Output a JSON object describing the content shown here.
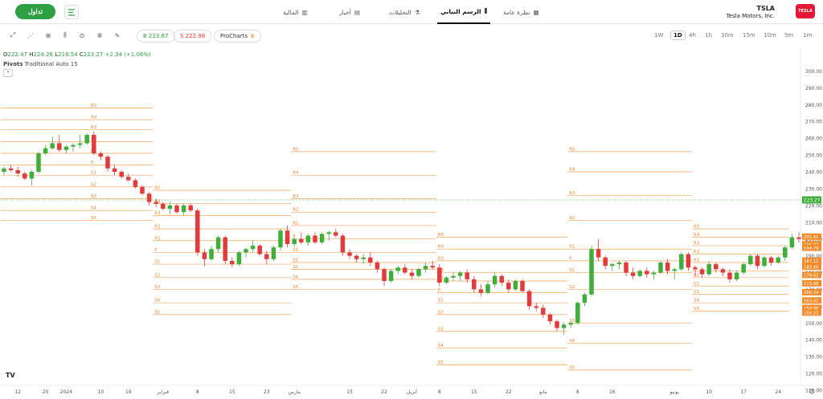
{
  "header": {
    "trade_label": "تداول",
    "nav": [
      {
        "label": "نظرة عامة",
        "icon": "grid-icon"
      },
      {
        "label": "الرسم البياني",
        "icon": "candles-icon"
      },
      {
        "label": "التحليلات",
        "icon": "flask-icon"
      },
      {
        "label": "أخبار",
        "icon": "newspaper-icon"
      },
      {
        "label": "المالية",
        "icon": "bar-chart-icon"
      }
    ],
    "symbol": "TSLA",
    "company": "Tesla Motors, Inc.",
    "logo_text": "TESLA"
  },
  "toolbar": {
    "buy": "B 223.67",
    "sell": "S 222.98",
    "pro": "ProCharts",
    "timeframes": [
      "1W",
      "1D",
      "4h",
      "1h",
      "30m",
      "15m",
      "10m",
      "5m",
      "1m"
    ],
    "active_timeframe": "1D"
  },
  "ohlc": {
    "o_label": "O",
    "o": "222.47",
    "h_label": "H",
    "h": "224.28",
    "l_label": "L",
    "l": "218.54",
    "c_label": "C",
    "c": "223.27",
    "change": "+2.34 (+1.06%)"
  },
  "indicator": {
    "name": "Pivots",
    "params": "Traditional Auto 15"
  },
  "chart_data": {
    "type": "candlestick",
    "ylim": [
      110,
      305
    ],
    "y_ticks": [
      300,
      290,
      280,
      270,
      260,
      250,
      240,
      230,
      220,
      210,
      200,
      190,
      180,
      170,
      160,
      150,
      140,
      130,
      120,
      110
    ],
    "y_tick_labels": [
      "300.00",
      "290.00",
      "280.00",
      "270.00",
      "260.00",
      "250.00",
      "240.00",
      "230.00",
      "220.00",
      "210.00",
      "200.00",
      "190.00",
      "180.00",
      "170.00",
      "160.00",
      "150.00",
      "140.00",
      "130.00",
      "120.00",
      "110.00"
    ],
    "x_labels": [
      {
        "label": "12",
        "i": 2
      },
      {
        "label": "20",
        "i": 6
      },
      {
        "label": "2024",
        "i": 9
      },
      {
        "label": "10",
        "i": 14
      },
      {
        "label": "19",
        "i": 18
      },
      {
        "label": "فبراير",
        "i": 23
      },
      {
        "label": "8",
        "i": 28
      },
      {
        "label": "15",
        "i": 33
      },
      {
        "label": "23",
        "i": 38
      },
      {
        "label": "مارس",
        "i": 42
      },
      {
        "label": "15",
        "i": 50
      },
      {
        "label": "22",
        "i": 55
      },
      {
        "label": "أبريل",
        "i": 59
      },
      {
        "label": "8",
        "i": 63
      },
      {
        "label": "15",
        "i": 68
      },
      {
        "label": "22",
        "i": 73
      },
      {
        "label": "مايو",
        "i": 78
      },
      {
        "label": "8",
        "i": 83
      },
      {
        "label": "16",
        "i": 88
      },
      {
        "label": "يونيو",
        "i": 97
      },
      {
        "label": "10",
        "i": 102
      },
      {
        "label": "17",
        "i": 107
      },
      {
        "label": "24",
        "i": 112
      }
    ],
    "candles": [
      [
        240,
        243,
        238,
        242
      ],
      [
        242,
        244,
        240,
        241
      ],
      [
        241,
        243,
        237,
        239
      ],
      [
        239,
        240,
        235,
        236
      ],
      [
        236,
        241,
        232,
        240
      ],
      [
        240,
        252,
        239,
        251
      ],
      [
        251,
        256,
        250,
        254
      ],
      [
        254,
        261,
        253,
        257
      ],
      [
        257,
        262,
        252,
        253
      ],
      [
        253,
        256,
        251,
        255
      ],
      [
        255,
        257,
        252,
        256
      ],
      [
        256,
        262,
        254,
        257
      ],
      [
        257,
        263,
        256,
        262
      ],
      [
        262,
        264,
        250,
        251
      ],
      [
        251,
        252,
        247,
        249
      ],
      [
        249,
        250,
        240,
        242
      ],
      [
        242,
        244,
        238,
        240
      ],
      [
        240,
        241,
        236,
        237
      ],
      [
        237,
        239,
        234,
        235
      ],
      [
        235,
        236,
        230,
        231
      ],
      [
        231,
        232,
        226,
        227
      ],
      [
        227,
        228,
        220,
        222
      ],
      [
        222,
        224,
        219,
        221
      ],
      [
        221,
        222,
        217,
        218
      ],
      [
        218,
        222,
        215,
        220
      ],
      [
        220,
        221,
        215,
        216
      ],
      [
        216,
        221,
        214,
        220
      ],
      [
        220,
        221,
        216,
        217
      ],
      [
        217,
        218,
        190,
        192
      ],
      [
        192,
        194,
        184,
        188
      ],
      [
        188,
        196,
        187,
        194
      ],
      [
        194,
        202,
        192,
        201
      ],
      [
        201,
        202,
        185,
        187
      ],
      [
        187,
        189,
        183,
        185
      ],
      [
        185,
        193,
        184,
        192
      ],
      [
        192,
        195,
        189,
        194
      ],
      [
        194,
        199,
        192,
        196
      ],
      [
        196,
        197,
        190,
        191
      ],
      [
        191,
        193,
        185,
        188
      ],
      [
        188,
        196,
        187,
        195
      ],
      [
        195,
        206,
        193,
        205
      ],
      [
        205,
        208,
        195,
        197
      ],
      [
        197,
        201,
        195,
        200
      ],
      [
        200,
        204,
        197,
        198
      ],
      [
        198,
        203,
        196,
        202
      ],
      [
        202,
        204,
        197,
        198
      ],
      [
        198,
        204,
        197,
        203
      ],
      [
        203,
        205,
        199,
        204
      ],
      [
        204,
        206,
        201,
        202
      ],
      [
        202,
        203,
        190,
        192
      ],
      [
        192,
        194,
        188,
        190
      ],
      [
        190,
        191,
        186,
        188
      ],
      [
        188,
        191,
        185,
        189
      ],
      [
        189,
        192,
        184,
        186
      ],
      [
        186,
        187,
        180,
        182
      ],
      [
        182,
        183,
        172,
        175
      ],
      [
        175,
        182,
        174,
        181
      ],
      [
        181,
        184,
        179,
        183
      ],
      [
        183,
        185,
        179,
        180
      ],
      [
        180,
        182,
        176,
        178
      ],
      [
        178,
        183,
        177,
        182
      ],
      [
        182,
        186,
        180,
        184
      ],
      [
        184,
        187,
        182,
        183
      ],
      [
        183,
        185,
        172,
        174
      ],
      [
        174,
        178,
        173,
        177
      ],
      [
        177,
        180,
        175,
        178
      ],
      [
        178,
        181,
        175,
        180
      ],
      [
        180,
        182,
        174,
        176
      ],
      [
        176,
        178,
        168,
        170
      ],
      [
        170,
        173,
        166,
        168
      ],
      [
        168,
        175,
        167,
        173
      ],
      [
        173,
        180,
        171,
        178
      ],
      [
        178,
        179,
        172,
        174
      ],
      [
        174,
        176,
        168,
        170
      ],
      [
        170,
        176,
        169,
        175
      ],
      [
        175,
        176,
        168,
        169
      ],
      [
        169,
        170,
        158,
        160
      ],
      [
        160,
        162,
        157,
        159
      ],
      [
        159,
        161,
        153,
        155
      ],
      [
        155,
        156,
        149,
        151
      ],
      [
        151,
        152,
        145,
        147
      ],
      [
        147,
        150,
        143,
        149
      ],
      [
        149,
        151,
        147,
        150
      ],
      [
        150,
        163,
        149,
        162
      ],
      [
        162,
        168,
        160,
        167
      ],
      [
        167,
        196,
        166,
        194
      ],
      [
        194,
        200,
        187,
        189
      ],
      [
        189,
        190,
        182,
        184
      ],
      [
        184,
        186,
        181,
        185
      ],
      [
        185,
        187,
        182,
        186
      ],
      [
        186,
        187,
        178,
        180
      ],
      [
        180,
        183,
        176,
        178
      ],
      [
        178,
        182,
        177,
        181
      ],
      [
        181,
        183,
        177,
        179
      ],
      [
        179,
        181,
        176,
        180
      ],
      [
        180,
        187,
        179,
        186
      ],
      [
        186,
        188,
        179,
        181
      ],
      [
        181,
        183,
        176,
        182
      ],
      [
        182,
        192,
        181,
        191
      ],
      [
        191,
        192,
        181,
        183
      ],
      [
        183,
        184,
        178,
        182
      ],
      [
        182,
        183,
        177,
        179
      ],
      [
        179,
        187,
        178,
        185
      ],
      [
        185,
        186,
        180,
        182
      ],
      [
        182,
        183,
        178,
        180
      ],
      [
        180,
        182,
        174,
        176
      ],
      [
        176,
        181,
        175,
        180
      ],
      [
        180,
        186,
        179,
        185
      ],
      [
        185,
        191,
        184,
        190
      ],
      [
        190,
        191,
        182,
        184
      ],
      [
        184,
        190,
        183,
        189
      ],
      [
        189,
        190,
        184,
        186
      ],
      [
        186,
        190,
        185,
        189
      ],
      [
        189,
        196,
        187,
        195
      ],
      [
        195,
        203,
        194,
        201
      ],
      [
        201,
        204,
        198,
        200
      ]
    ],
    "pivots": [
      {
        "start": 0,
        "end": 22,
        "levels": [
          {
            "name": "R5",
            "value": 278
          },
          {
            "name": "R4",
            "value": 271
          },
          {
            "name": "R3",
            "value": 265
          },
          {
            "name": "R2",
            "value": 258
          },
          {
            "name": "R1",
            "value": 251
          },
          {
            "name": "P",
            "value": 244
          },
          {
            "name": "S1",
            "value": 238
          },
          {
            "name": "S2",
            "value": 231
          },
          {
            "name": "S3",
            "value": 224
          },
          {
            "name": "S4",
            "value": 217
          },
          {
            "name": "S5",
            "value": 211
          }
        ]
      },
      {
        "start": 22,
        "end": 42,
        "levels": [
          {
            "name": "R5",
            "value": 229
          },
          {
            "name": "R4",
            "value": 221
          },
          {
            "name": "R3",
            "value": 214
          },
          {
            "name": "R2",
            "value": 206
          },
          {
            "name": "R1",
            "value": 199
          },
          {
            "name": "P",
            "value": 192
          },
          {
            "name": "S1",
            "value": 185
          },
          {
            "name": "S2",
            "value": 177
          },
          {
            "name": "S3",
            "value": 170
          },
          {
            "name": "S4",
            "value": 162
          },
          {
            "name": "S5",
            "value": 155
          }
        ]
      },
      {
        "start": 42,
        "end": 63,
        "levels": [
          {
            "name": "R5",
            "value": 252
          },
          {
            "name": "R4",
            "value": 238
          },
          {
            "name": "R3",
            "value": 224
          },
          {
            "name": "R2",
            "value": 216
          },
          {
            "name": "R1",
            "value": 208
          },
          {
            "name": "P",
            "value": 200
          },
          {
            "name": "S1",
            "value": 192
          },
          {
            "name": "S2",
            "value": 186
          },
          {
            "name": "S3",
            "value": 182
          },
          {
            "name": "S4",
            "value": 176
          },
          {
            "name": "S5",
            "value": 170
          }
        ]
      },
      {
        "start": 63,
        "end": 82,
        "levels": [
          {
            "name": "R5",
            "value": 201
          },
          {
            "name": "R4",
            "value": 194
          },
          {
            "name": "R3",
            "value": 187
          },
          {
            "name": "R2",
            "value": 180
          },
          {
            "name": "R1",
            "value": 175
          },
          {
            "name": "P",
            "value": 168
          },
          {
            "name": "S1",
            "value": 162
          },
          {
            "name": "S2",
            "value": 155
          },
          {
            "name": "S3",
            "value": 145
          },
          {
            "name": "S4",
            "value": 135
          },
          {
            "name": "S5",
            "value": 125
          }
        ]
      },
      {
        "start": 82,
        "end": 100,
        "levels": [
          {
            "name": "R5",
            "value": 252
          },
          {
            "name": "R4",
            "value": 240
          },
          {
            "name": "R3",
            "value": 226
          },
          {
            "name": "R2",
            "value": 211
          },
          {
            "name": "R1",
            "value": 194
          },
          {
            "name": "P",
            "value": 187
          },
          {
            "name": "S1",
            "value": 180
          },
          {
            "name": "S2",
            "value": 170
          },
          {
            "name": "S3",
            "value": 150
          },
          {
            "name": "S4",
            "value": 138
          },
          {
            "name": "S5",
            "value": 122
          }
        ]
      },
      {
        "start": 100,
        "end": 114,
        "levels": [
          {
            "name": "R5",
            "value": 206
          },
          {
            "name": "R4",
            "value": 201
          },
          {
            "name": "R3",
            "value": 196
          },
          {
            "name": "R2",
            "value": 191
          },
          {
            "name": "R1",
            "value": 186
          },
          {
            "name": "P",
            "value": 181
          },
          {
            "name": "S1",
            "value": 177
          },
          {
            "name": "S2",
            "value": 172
          },
          {
            "name": "S3",
            "value": 167
          },
          {
            "name": "S4",
            "value": 162
          },
          {
            "name": "S5",
            "value": 157
          }
        ]
      }
    ],
    "current_price": 223.27,
    "current_price_label": "223.27",
    "level_tags": [
      "201.41",
      "196.94",
      "194.79",
      "187.11",
      "183.49",
      "178.62",
      "173.66",
      "168.34",
      "163.41",
      "158.96",
      "156.21"
    ],
    "level_tag_values": [
      201.41,
      196.94,
      194.79,
      187.11,
      183.49,
      178.62,
      173.66,
      168.34,
      163.41,
      158.96,
      156.21
    ]
  }
}
